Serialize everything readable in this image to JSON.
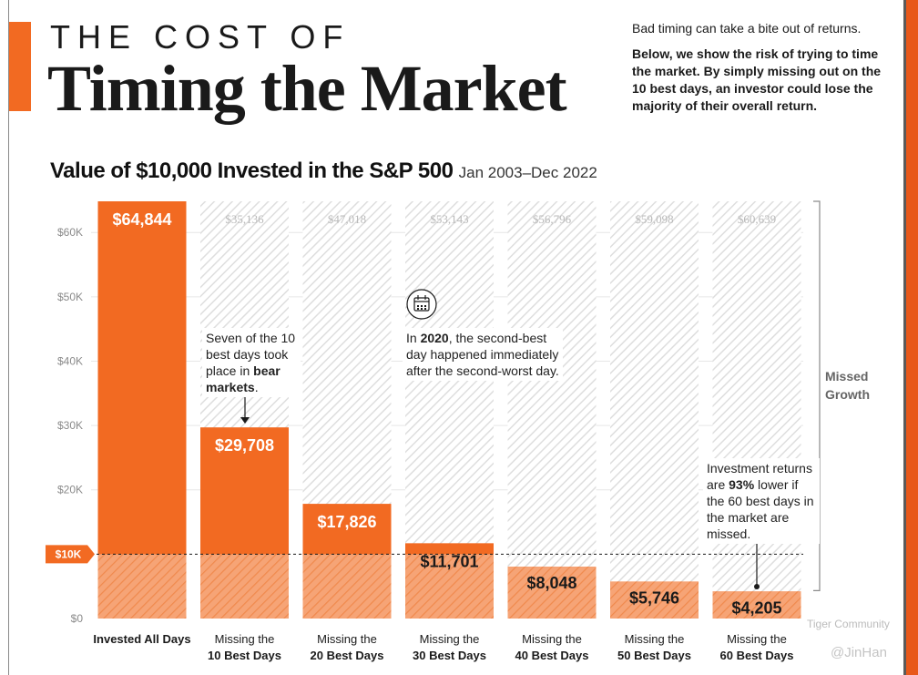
{
  "header": {
    "kicker": "THE COST OF",
    "headline": "Timing the Market",
    "intro_lead": "Bad timing can take a bite out of returns.",
    "intro_body": "Below, we show the risk of trying to time the market. By simply missing out on the 10 best days, an investor could lose the majority of their overall return."
  },
  "chart_data": {
    "type": "bar",
    "title": "Value of $10,000 Invested in the S&P 500",
    "subtitle": "Jan 2003–Dec 2022",
    "categories": [
      [
        "Invested All Days"
      ],
      [
        "Missing the",
        "10 Best Days"
      ],
      [
        "Missing the",
        "20 Best Days"
      ],
      [
        "Missing the",
        "30 Best Days"
      ],
      [
        "Missing the",
        "40 Best Days"
      ],
      [
        "Missing the",
        "50 Best Days"
      ],
      [
        "Missing the",
        "60 Best Days"
      ]
    ],
    "values": [
      64844,
      29708,
      17826,
      11701,
      8048,
      5746,
      4205
    ],
    "value_labels": [
      "$64,844",
      "$29,708",
      "$17,826",
      "$11,701",
      "$8,048",
      "$5,746",
      "$4,205"
    ],
    "missed_values": [
      null,
      35136,
      47018,
      53143,
      56796,
      59098,
      60639
    ],
    "missed_labels": [
      "",
      "$35,136",
      "$47,018",
      "$53,143",
      "$56,796",
      "$59,098",
      "$60,639"
    ],
    "ylim": [
      0,
      64844
    ],
    "yticks": [
      0,
      10000,
      20000,
      30000,
      40000,
      50000,
      60000
    ],
    "ytick_labels": [
      "$0",
      "$10K",
      "$20K",
      "$30K",
      "$40K",
      "$50K",
      "$60K"
    ],
    "baseline_value": 10000,
    "baseline_label": "$10K",
    "bracket_label": [
      "Missed",
      "Growth"
    ],
    "colors": {
      "bar": "#f26a22",
      "bar_base": "#f6a476",
      "hatch": "#e3e3e3",
      "text_dark": "#1a1a1a",
      "tick": "#8a8a8a"
    }
  },
  "annotations": {
    "bear": {
      "pre": "Seven of the 10 best days took place in ",
      "bold": "bear markets",
      "post": "."
    },
    "y2020": {
      "pre": "In ",
      "bold": "2020",
      "post": ", the second-best day happened immediately after the second-worst day."
    },
    "lower": {
      "pre": "Investment returns are ",
      "bold": "93%",
      "post": " lower if the 60 best days in the market are missed."
    },
    "calendar_icon": "calendar-icon"
  },
  "watermarks": {
    "community": "Tiger Community",
    "handle": "@JinHan"
  }
}
